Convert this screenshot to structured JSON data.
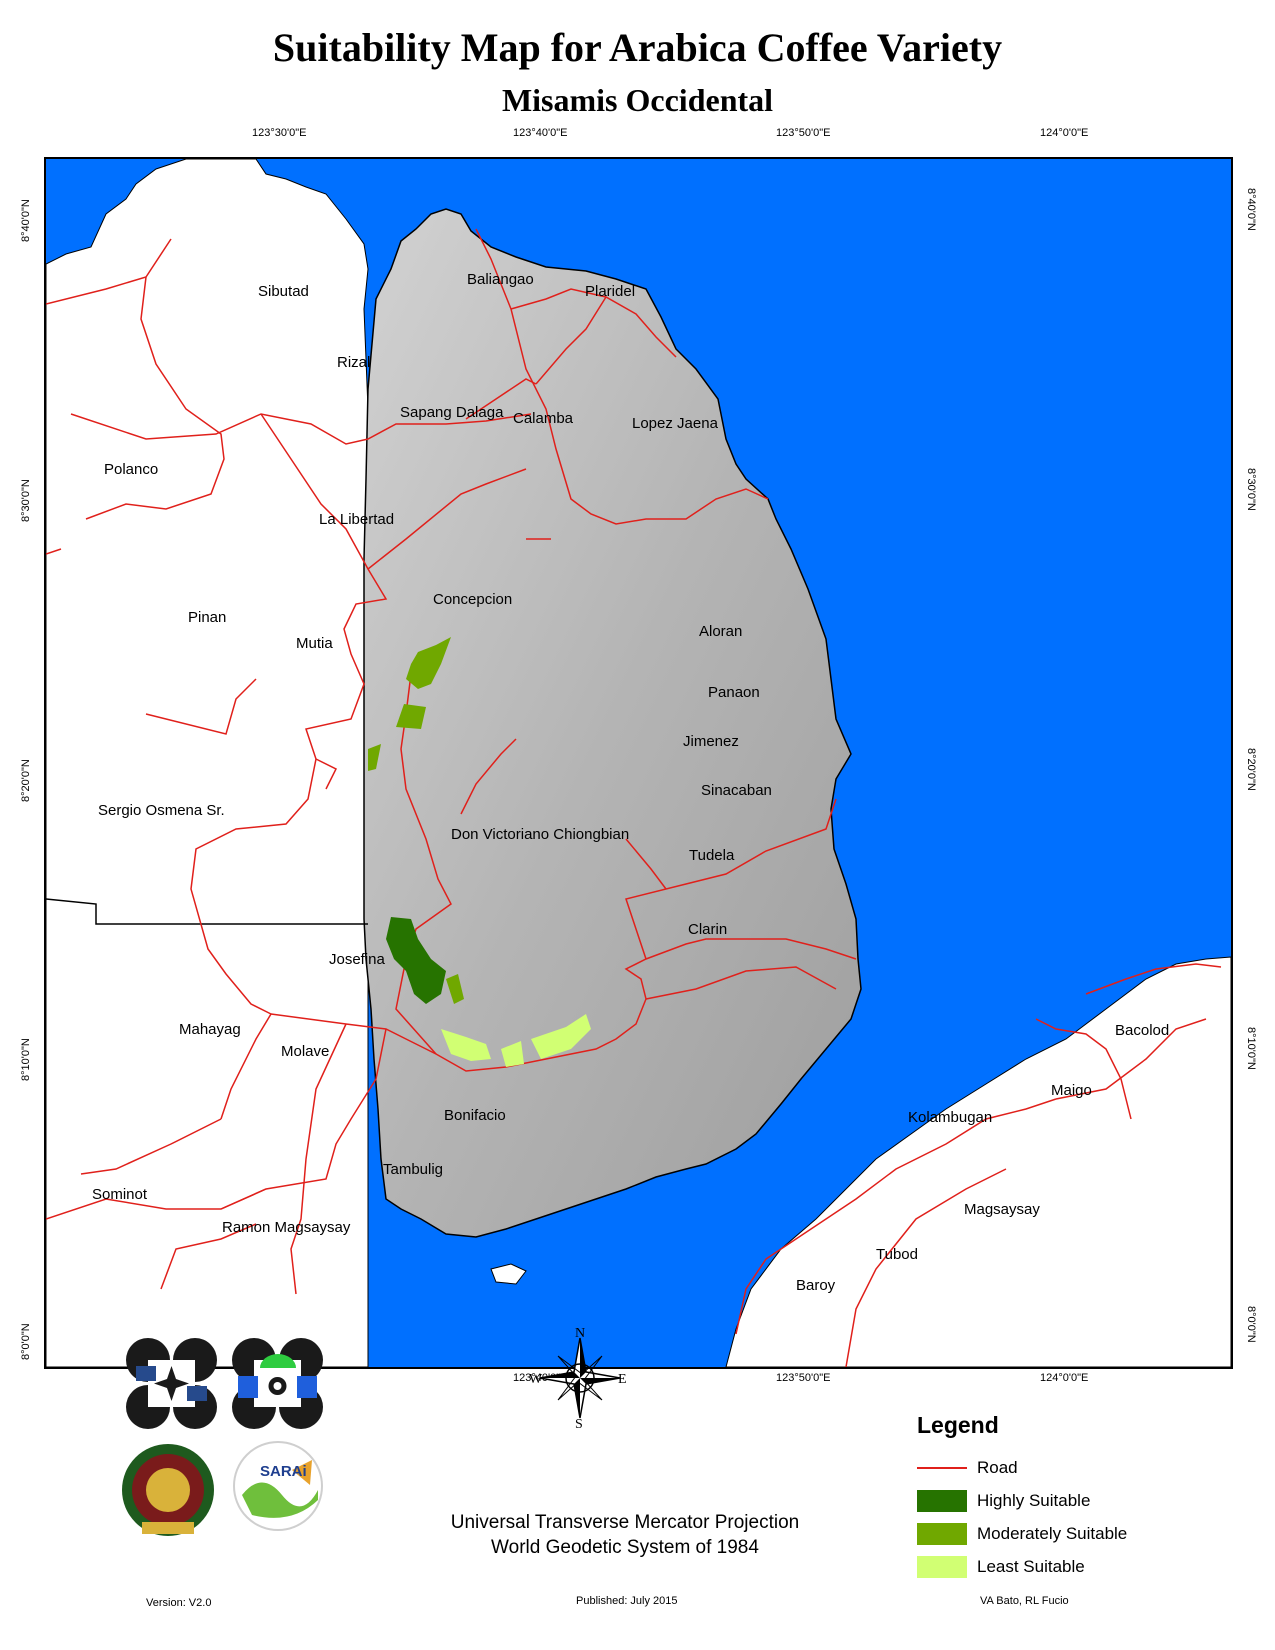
{
  "title": "Suitability Map for Arabica Coffee Variety",
  "subtitle": "Misamis Occidental",
  "longitude_labels": [
    "123°30'0\"E",
    "123°40'0\"E",
    "123°50'0\"E",
    "124°0'0\"E"
  ],
  "latitude_labels": [
    "8°40'0\"N",
    "8°30'0\"N",
    "8°20'0\"N",
    "8°10'0\"N",
    "8°0'0\"N"
  ],
  "places": [
    "Sibutad",
    "Baliangao",
    "Plaridel",
    "Rizal",
    "Sapang Dalaga",
    "Calamba",
    "Lopez Jaena",
    "Polanco",
    "La Libertad",
    "Concepcion",
    "Pinan",
    "Mutia",
    "Aloran",
    "Panaon",
    "Jimenez",
    "Sergio Osmena Sr.",
    "Sinacaban",
    "Don Victoriano Chiongbian",
    "Tudela",
    "Clarin",
    "Josefina",
    "Mahayag",
    "Molave",
    "Bacolod",
    "Maigo",
    "Bonifacio",
    "Kolambugan",
    "Tambulig",
    "Sominot",
    "Magsaysay",
    "Ramon Magsaysay",
    "Tubod",
    "Baroy"
  ],
  "compass": {
    "n": "N",
    "s": "S",
    "e": "E",
    "w": "W"
  },
  "legend": {
    "title": "Legend",
    "items": [
      {
        "label": "Road",
        "kind": "line",
        "color": "#e0201b"
      },
      {
        "label": "Highly Suitable",
        "kind": "fill",
        "color": "#267300"
      },
      {
        "label": "Moderately Suitable",
        "kind": "fill",
        "color": "#70a800"
      },
      {
        "label": "Least Suitable",
        "kind": "fill",
        "color": "#d1ff73"
      }
    ]
  },
  "projection": [
    "Universal Transverse Mercator Projection",
    "World Geodetic System of 1984"
  ],
  "footer": {
    "version": "Version: V2.0",
    "published": "Published: July 2015",
    "authors": "VA Bato, RL Fucio"
  },
  "logo_text": {
    "sarai": "SARAi"
  },
  "colors": {
    "sea": "#0070ff",
    "land_province": "#b8b8b8",
    "land_other": "#ffffff",
    "road": "#e0201b"
  }
}
